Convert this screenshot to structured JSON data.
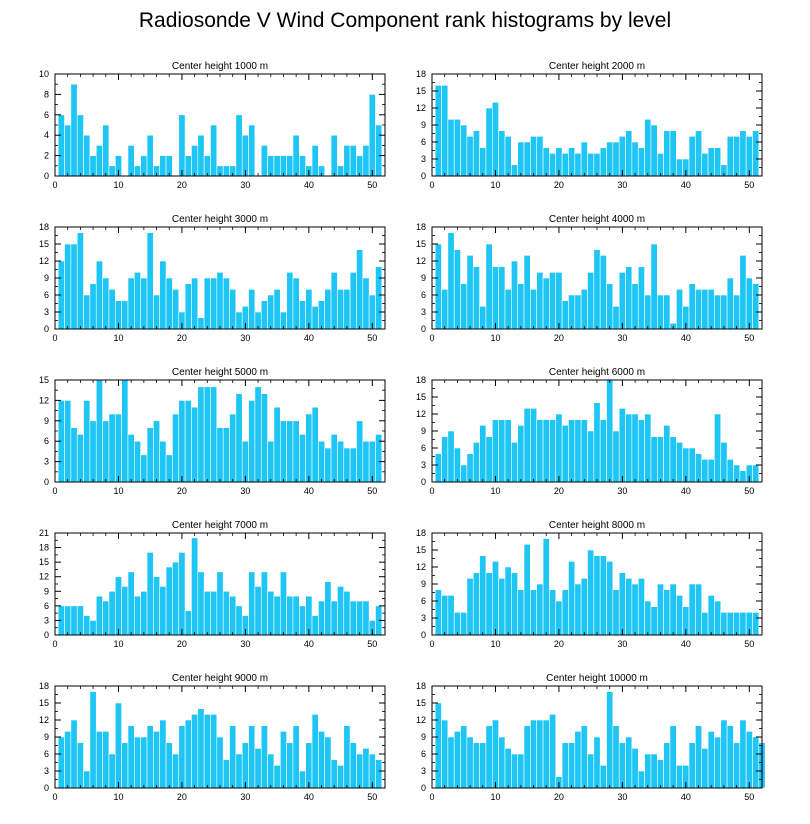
{
  "title": "Radiosonde V Wind Component rank histograms by level",
  "colors": {
    "bar": "#1ec5f5",
    "bar_edge": "#ffffff",
    "axis": "#000000",
    "background": "#ffffff"
  },
  "chart_data": [
    {
      "type": "bar",
      "title": "Center height 1000 m",
      "xlim": [
        0,
        52
      ],
      "xticks": [
        0,
        10,
        20,
        30,
        40,
        50
      ],
      "ylim": [
        0,
        10
      ],
      "yticks": [
        0,
        2,
        4,
        6,
        8,
        10
      ],
      "categories_start": 1,
      "values": [
        6,
        5,
        9,
        6,
        4,
        2,
        3,
        5,
        1,
        2,
        0,
        3,
        1,
        2,
        4,
        1,
        2,
        2,
        0,
        6,
        2,
        3,
        4,
        2,
        5,
        1,
        1,
        1,
        6,
        4,
        5,
        0,
        3,
        2,
        2,
        2,
        2,
        4,
        2,
        1,
        3,
        1,
        0,
        4,
        1,
        3,
        3,
        2,
        3,
        8,
        5
      ]
    },
    {
      "type": "bar",
      "title": "Center height 2000 m",
      "xlim": [
        0,
        52
      ],
      "xticks": [
        0,
        10,
        20,
        30,
        40,
        50
      ],
      "ylim": [
        0,
        18
      ],
      "yticks": [
        0,
        3,
        6,
        9,
        12,
        15,
        18
      ],
      "categories_start": 1,
      "values": [
        16,
        16,
        10,
        10,
        9,
        7,
        8,
        5,
        12,
        13,
        8,
        7,
        2,
        6,
        6,
        7,
        7,
        5,
        4,
        5,
        4,
        5,
        4,
        6,
        4,
        4,
        5,
        6,
        6,
        7,
        8,
        6,
        5,
        10,
        9,
        4,
        8,
        8,
        3,
        3,
        7,
        8,
        4,
        5,
        5,
        2,
        7,
        7,
        8,
        7,
        8
      ]
    },
    {
      "type": "bar",
      "title": "Center height 3000 m",
      "xlim": [
        0,
        52
      ],
      "xticks": [
        0,
        10,
        20,
        30,
        40,
        50
      ],
      "ylim": [
        0,
        18
      ],
      "yticks": [
        0,
        3,
        6,
        9,
        12,
        15,
        18
      ],
      "categories_start": 1,
      "values": [
        12,
        15,
        15,
        17,
        6,
        8,
        12,
        9,
        7,
        5,
        5,
        9,
        10,
        9,
        17,
        6,
        12,
        9,
        7,
        3,
        8,
        9,
        2,
        9,
        9,
        10,
        9,
        7,
        3,
        4,
        7,
        3,
        5,
        6,
        7,
        3,
        10,
        9,
        5,
        7,
        4,
        5,
        7,
        10,
        7,
        7,
        10,
        14,
        9,
        6,
        11
      ]
    },
    {
      "type": "bar",
      "title": "Center height 4000 m",
      "xlim": [
        0,
        52
      ],
      "xticks": [
        0,
        10,
        20,
        30,
        40,
        50
      ],
      "ylim": [
        0,
        18
      ],
      "yticks": [
        0,
        3,
        6,
        9,
        12,
        15,
        18
      ],
      "categories_start": 1,
      "values": [
        15,
        7,
        17,
        14,
        8,
        13,
        11,
        4,
        15,
        11,
        11,
        7,
        12,
        8,
        13,
        7,
        10,
        9,
        10,
        10,
        5,
        6,
        6,
        7,
        10,
        14,
        13,
        8,
        4,
        10,
        11,
        8,
        11,
        6,
        15,
        6,
        6,
        1,
        7,
        4,
        8,
        7,
        7,
        7,
        6,
        6,
        9,
        6,
        13,
        9,
        8
      ]
    },
    {
      "type": "bar",
      "title": "Center height 5000 m",
      "xlim": [
        0,
        52
      ],
      "xticks": [
        0,
        10,
        20,
        30,
        40,
        50
      ],
      "ylim": [
        0,
        15
      ],
      "yticks": [
        0,
        3,
        6,
        9,
        12,
        15
      ],
      "categories_start": 1,
      "values": [
        12,
        12,
        8,
        7,
        12,
        9,
        15,
        9,
        10,
        10,
        15,
        7,
        6,
        4,
        8,
        9,
        6,
        4,
        10,
        12,
        12,
        11,
        14,
        14,
        14,
        8,
        8,
        10,
        13,
        6,
        12,
        14,
        13,
        6,
        11,
        9,
        9,
        9,
        7,
        10,
        11,
        6,
        5,
        7,
        6,
        5,
        5,
        9,
        6,
        6,
        7
      ]
    },
    {
      "type": "bar",
      "title": "Center height 6000 m",
      "xlim": [
        0,
        52
      ],
      "xticks": [
        0,
        10,
        20,
        30,
        40,
        50
      ],
      "ylim": [
        0,
        18
      ],
      "yticks": [
        0,
        3,
        6,
        9,
        12,
        15,
        18
      ],
      "categories_start": 1,
      "values": [
        5,
        8,
        9,
        6,
        3,
        5,
        7,
        10,
        8,
        11,
        11,
        11,
        7,
        10,
        13,
        13,
        11,
        11,
        11,
        12,
        10,
        11,
        11,
        11,
        9,
        14,
        11,
        18,
        9,
        13,
        12,
        12,
        11,
        12,
        8,
        8,
        10,
        8,
        7,
        6,
        6,
        5,
        4,
        4,
        12,
        7,
        4,
        3,
        2,
        3,
        3
      ]
    },
    {
      "type": "bar",
      "title": "Center height 7000 m",
      "xlim": [
        0,
        52
      ],
      "xticks": [
        0,
        10,
        20,
        30,
        40,
        50
      ],
      "ylim": [
        0,
        21
      ],
      "yticks": [
        0,
        3,
        6,
        9,
        12,
        15,
        18,
        21
      ],
      "categories_start": 1,
      "values": [
        6,
        6,
        6,
        6,
        4,
        3,
        8,
        7,
        9,
        12,
        10,
        13,
        8,
        9,
        17,
        12,
        10,
        14,
        15,
        17,
        5,
        20,
        13,
        9,
        9,
        13,
        9,
        8,
        6,
        4,
        13,
        10,
        13,
        9,
        8,
        13,
        8,
        8,
        6,
        8,
        4,
        7,
        11,
        7,
        10,
        9,
        7,
        7,
        7,
        3,
        6
      ]
    },
    {
      "type": "bar",
      "title": "Center height 8000 m",
      "xlim": [
        0,
        52
      ],
      "xticks": [
        0,
        10,
        20,
        30,
        40,
        50
      ],
      "ylim": [
        0,
        18
      ],
      "yticks": [
        0,
        3,
        6,
        9,
        12,
        15,
        18
      ],
      "categories_start": 1,
      "values": [
        8,
        7,
        7,
        4,
        4,
        10,
        11,
        14,
        11,
        13,
        10,
        12,
        11,
        8,
        16,
        8,
        9,
        17,
        8,
        6,
        8,
        13,
        9,
        10,
        15,
        14,
        14,
        13,
        8,
        11,
        10,
        9,
        10,
        6,
        5,
        9,
        8,
        9,
        7,
        5,
        9,
        9,
        4,
        7,
        6,
        4,
        4,
        4,
        4,
        4,
        4
      ]
    },
    {
      "type": "bar",
      "title": "Center height 9000 m",
      "xlim": [
        0,
        52
      ],
      "xticks": [
        0,
        10,
        20,
        30,
        40,
        50
      ],
      "ylim": [
        0,
        18
      ],
      "yticks": [
        0,
        3,
        6,
        9,
        12,
        15,
        18
      ],
      "categories_start": 1,
      "values": [
        9,
        10,
        12,
        8,
        3,
        17,
        10,
        10,
        6,
        15,
        8,
        11,
        9,
        9,
        11,
        10,
        12,
        8,
        6,
        11,
        12,
        13,
        14,
        13,
        13,
        9,
        5,
        11,
        6,
        8,
        11,
        7,
        11,
        6,
        4,
        10,
        8,
        11,
        3,
        8,
        13,
        10,
        9,
        5,
        4,
        11,
        8,
        6,
        7,
        6,
        5
      ]
    },
    {
      "type": "bar",
      "title": "Center height 10000 m",
      "xlim": [
        0,
        52
      ],
      "xticks": [
        0,
        10,
        20,
        30,
        40,
        50
      ],
      "ylim": [
        0,
        18
      ],
      "yticks": [
        0,
        3,
        6,
        9,
        12,
        15,
        18
      ],
      "categories_start": 1,
      "values": [
        15,
        12,
        9,
        10,
        11,
        9,
        8,
        8,
        11,
        12,
        9,
        7,
        6,
        6,
        11,
        12,
        12,
        12,
        13,
        2,
        8,
        8,
        10,
        11,
        6,
        9,
        4,
        17,
        11,
        8,
        9,
        7,
        3,
        6,
        6,
        5,
        8,
        11,
        4,
        4,
        8,
        11,
        7,
        10,
        9,
        12,
        11,
        8,
        12,
        10,
        9,
        8
      ]
    }
  ]
}
